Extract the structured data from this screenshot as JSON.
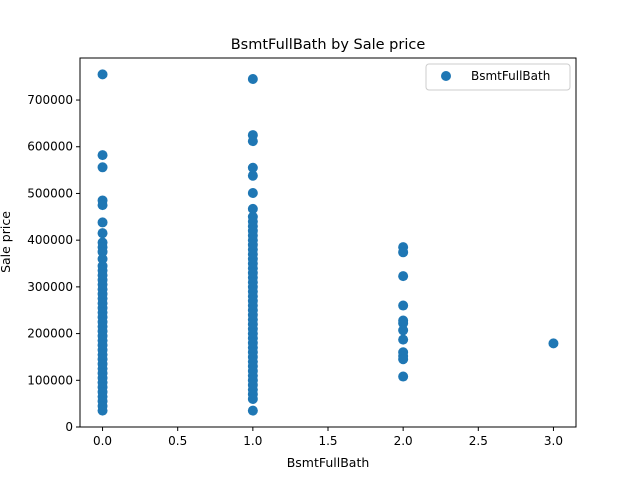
{
  "chart_data": {
    "type": "scatter",
    "title": "BsmtFullBath by Sale price",
    "xlabel": "BsmtFullBath",
    "ylabel": "Sale price",
    "xlim": [
      -0.15,
      3.15
    ],
    "ylim": [
      0,
      790000
    ],
    "xticks": [
      0.0,
      0.5,
      1.0,
      1.5,
      2.0,
      2.5,
      3.0
    ],
    "xtick_labels": [
      "0.0",
      "0.5",
      "1.0",
      "1.5",
      "2.0",
      "2.5",
      "3.0"
    ],
    "yticks": [
      0,
      100000,
      200000,
      300000,
      400000,
      500000,
      600000,
      700000
    ],
    "ytick_labels": [
      "0",
      "100000",
      "200000",
      "300000",
      "400000",
      "500000",
      "600000",
      "700000"
    ],
    "grid": false,
    "legend_position": "top-right",
    "series": [
      {
        "name": "BsmtFullBath",
        "color": "#1f77b4",
        "points": [
          [
            0,
            755000
          ],
          [
            0,
            582000
          ],
          [
            0,
            556000
          ],
          [
            0,
            485000
          ],
          [
            0,
            475000
          ],
          [
            0,
            438000
          ],
          [
            0,
            415000
          ],
          [
            0,
            395000
          ],
          [
            0,
            385000
          ],
          [
            0,
            375000
          ],
          [
            0,
            360000
          ],
          [
            0,
            345000
          ],
          [
            0,
            335000
          ],
          [
            0,
            325000
          ],
          [
            0,
            315000
          ],
          [
            0,
            305000
          ],
          [
            0,
            295000
          ],
          [
            0,
            285000
          ],
          [
            0,
            275000
          ],
          [
            0,
            265000
          ],
          [
            0,
            255000
          ],
          [
            0,
            245000
          ],
          [
            0,
            235000
          ],
          [
            0,
            225000
          ],
          [
            0,
            215000
          ],
          [
            0,
            205000
          ],
          [
            0,
            195000
          ],
          [
            0,
            185000
          ],
          [
            0,
            175000
          ],
          [
            0,
            165000
          ],
          [
            0,
            155000
          ],
          [
            0,
            145000
          ],
          [
            0,
            135000
          ],
          [
            0,
            125000
          ],
          [
            0,
            115000
          ],
          [
            0,
            105000
          ],
          [
            0,
            95000
          ],
          [
            0,
            85000
          ],
          [
            0,
            75000
          ],
          [
            0,
            65000
          ],
          [
            0,
            55000
          ],
          [
            0,
            45000
          ],
          [
            0,
            35000
          ],
          [
            1,
            745000
          ],
          [
            1,
            625000
          ],
          [
            1,
            612000
          ],
          [
            1,
            555000
          ],
          [
            1,
            538000
          ],
          [
            1,
            501000
          ],
          [
            1,
            467000
          ],
          [
            1,
            450000
          ],
          [
            1,
            440000
          ],
          [
            1,
            430000
          ],
          [
            1,
            420000
          ],
          [
            1,
            410000
          ],
          [
            1,
            400000
          ],
          [
            1,
            390000
          ],
          [
            1,
            380000
          ],
          [
            1,
            370000
          ],
          [
            1,
            360000
          ],
          [
            1,
            350000
          ],
          [
            1,
            340000
          ],
          [
            1,
            330000
          ],
          [
            1,
            320000
          ],
          [
            1,
            310000
          ],
          [
            1,
            300000
          ],
          [
            1,
            290000
          ],
          [
            1,
            280000
          ],
          [
            1,
            270000
          ],
          [
            1,
            260000
          ],
          [
            1,
            250000
          ],
          [
            1,
            240000
          ],
          [
            1,
            230000
          ],
          [
            1,
            220000
          ],
          [
            1,
            210000
          ],
          [
            1,
            200000
          ],
          [
            1,
            190000
          ],
          [
            1,
            180000
          ],
          [
            1,
            170000
          ],
          [
            1,
            160000
          ],
          [
            1,
            150000
          ],
          [
            1,
            140000
          ],
          [
            1,
            130000
          ],
          [
            1,
            120000
          ],
          [
            1,
            110000
          ],
          [
            1,
            100000
          ],
          [
            1,
            90000
          ],
          [
            1,
            80000
          ],
          [
            1,
            70000
          ],
          [
            1,
            60000
          ],
          [
            1,
            35000
          ],
          [
            2,
            385000
          ],
          [
            2,
            374000
          ],
          [
            2,
            323000
          ],
          [
            2,
            260000
          ],
          [
            2,
            228000
          ],
          [
            2,
            222000
          ],
          [
            2,
            207000
          ],
          [
            2,
            187000
          ],
          [
            2,
            160000
          ],
          [
            2,
            152000
          ],
          [
            2,
            145000
          ],
          [
            2,
            108000
          ],
          [
            3,
            179000
          ]
        ]
      }
    ]
  }
}
